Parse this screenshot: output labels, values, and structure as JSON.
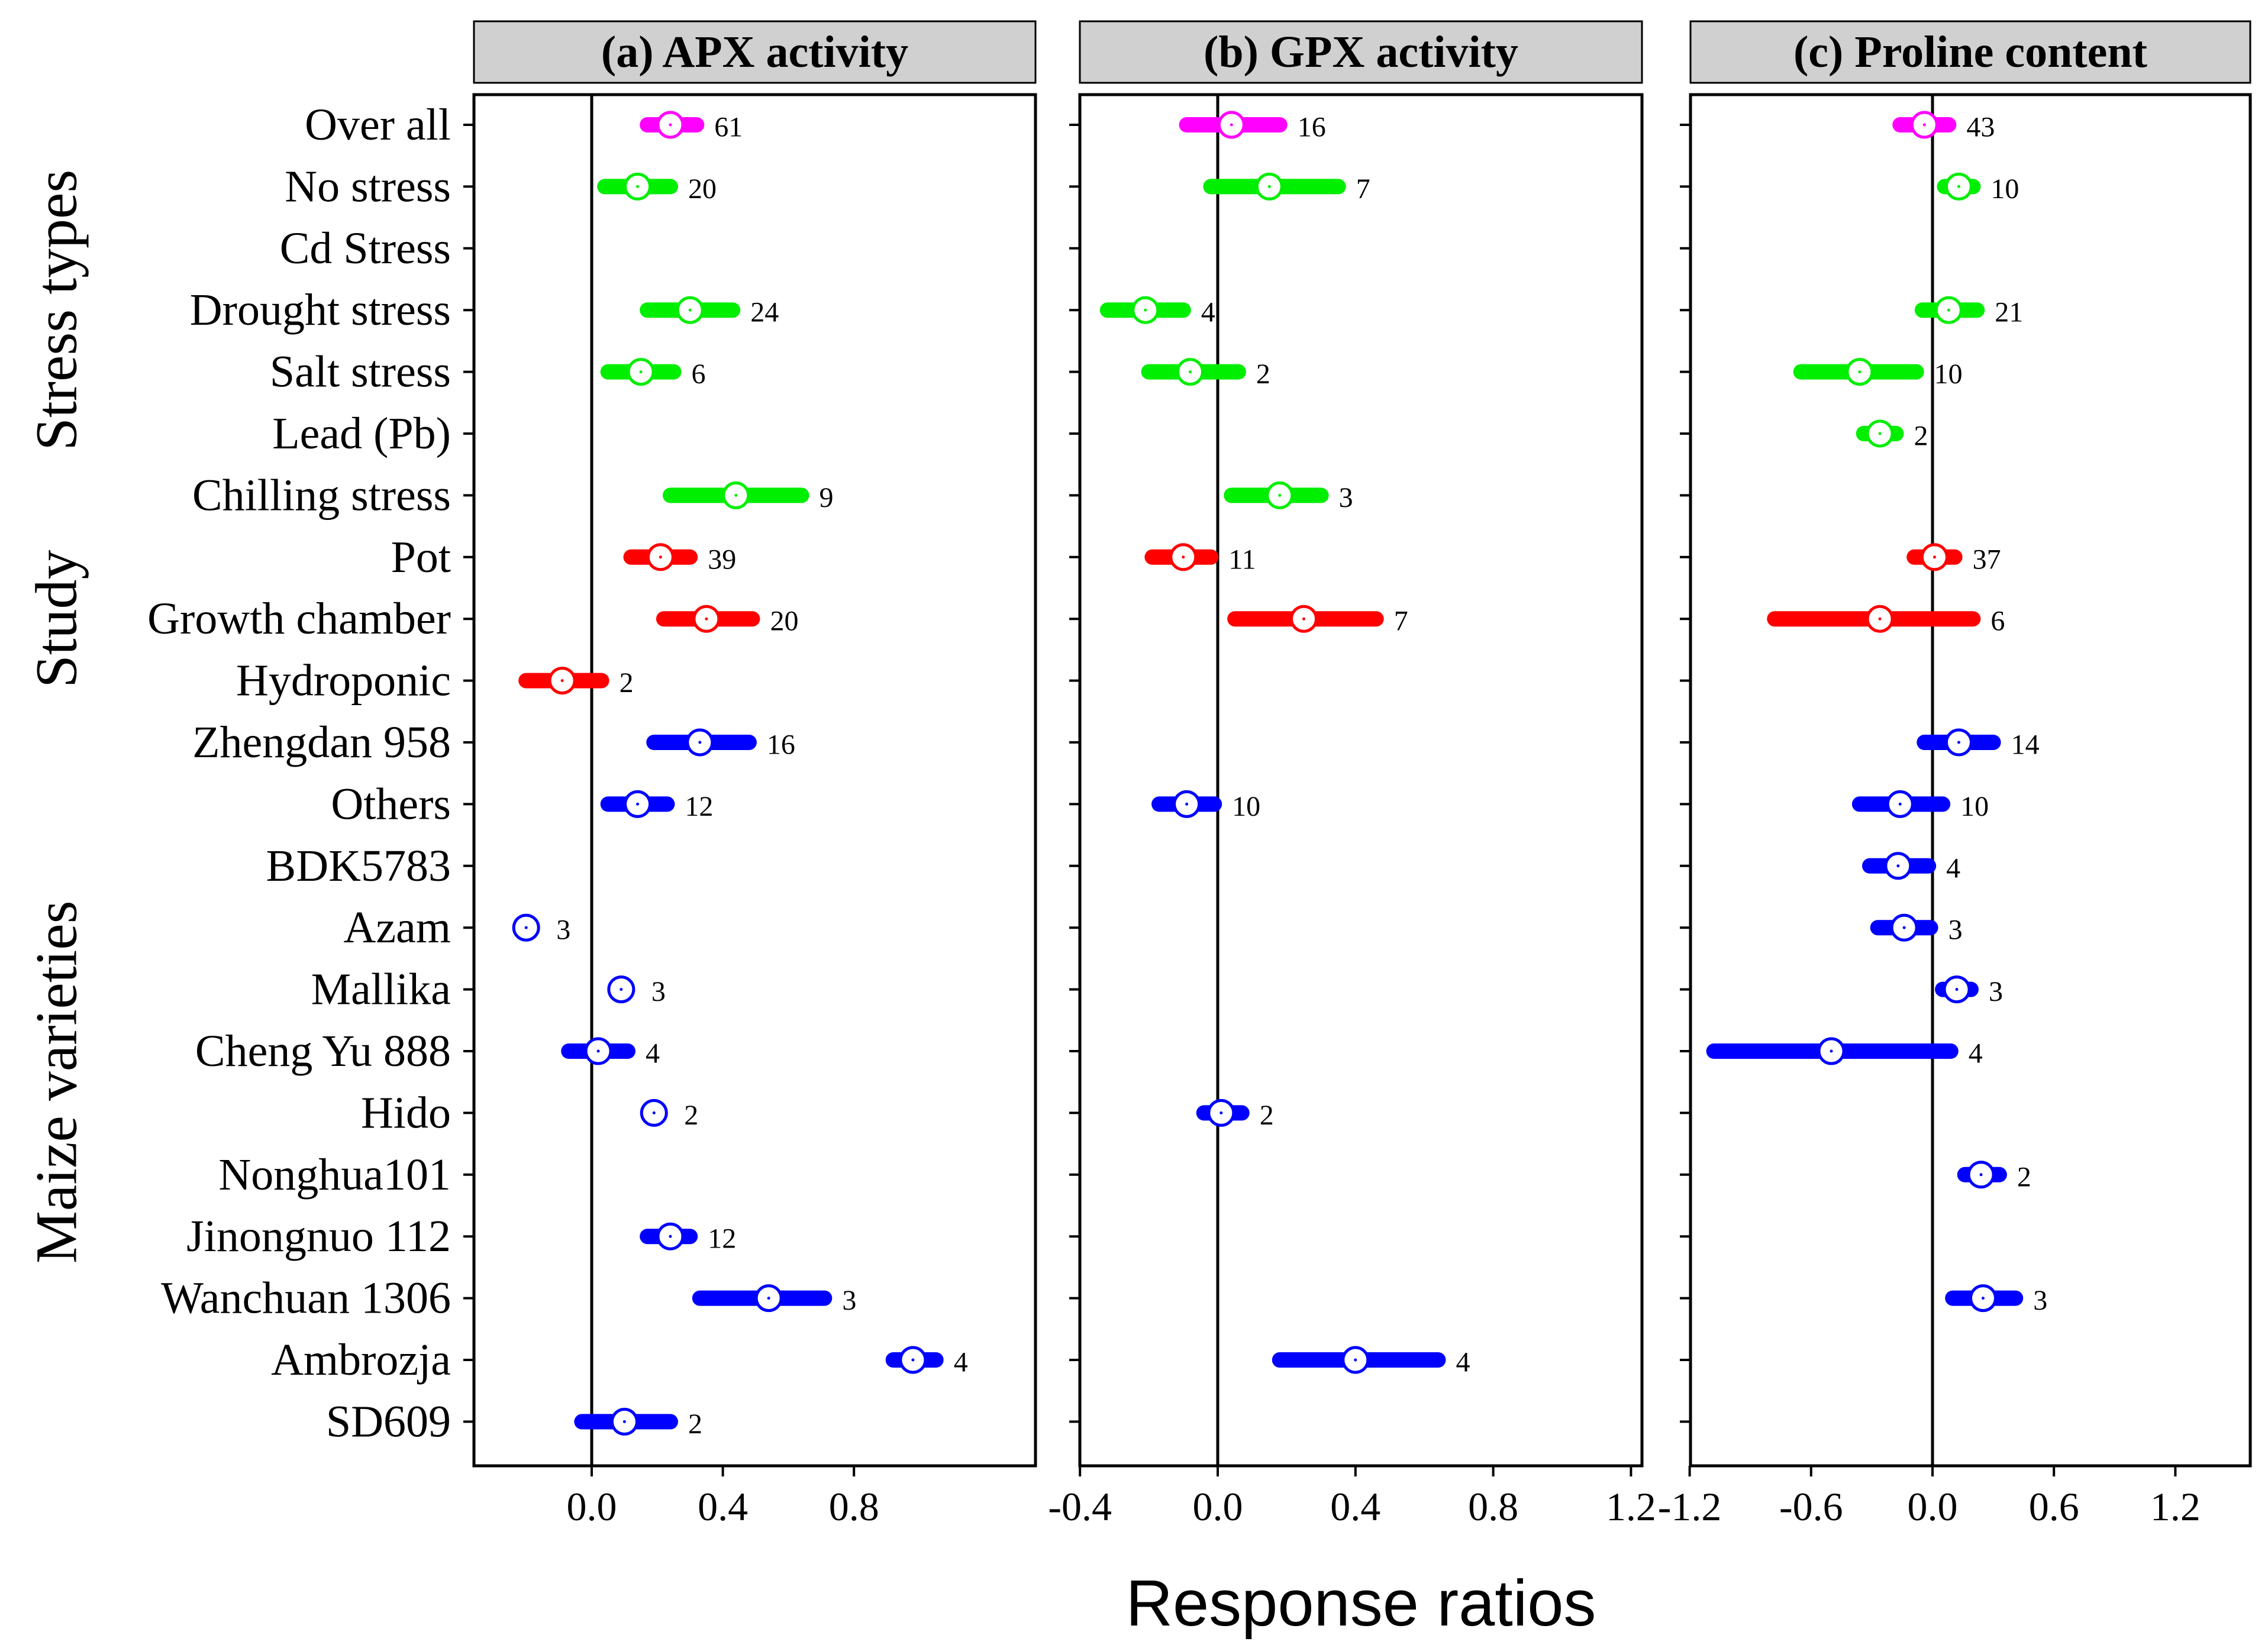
{
  "chart_data": {
    "type": "forest",
    "xlabel": "Response ratios",
    "colors": {
      "overall": "#ff00ff",
      "stress": "#00ee00",
      "study": "#ff0000",
      "variety": "#0000ff"
    },
    "groups": [
      {
        "label": "Stress types",
        "rows": [
          0,
          6
        ]
      },
      {
        "label": "Study",
        "rows": [
          7,
          9
        ]
      },
      {
        "label": "Maize varieties",
        "rows": [
          10,
          21
        ]
      }
    ],
    "rows": [
      {
        "label": "Over all",
        "color": "overall"
      },
      {
        "label": "No stress",
        "color": "stress"
      },
      {
        "label": "Cd Stress",
        "color": "stress"
      },
      {
        "label": "Drought stress",
        "color": "stress"
      },
      {
        "label": "Salt stress",
        "color": "stress"
      },
      {
        "label": "Lead (Pb)",
        "color": "stress"
      },
      {
        "label": "Chilling stress",
        "color": "stress"
      },
      {
        "label": "Pot",
        "color": "study"
      },
      {
        "label": "Growth chamber",
        "color": "study"
      },
      {
        "label": "Hydroponic",
        "color": "study"
      },
      {
        "label": "Zhengdan 958",
        "color": "variety"
      },
      {
        "label": "Others",
        "color": "variety"
      },
      {
        "label": "BDK5783",
        "color": "variety"
      },
      {
        "label": "Azam",
        "color": "variety"
      },
      {
        "label": "Mallika",
        "color": "variety"
      },
      {
        "label": "Cheng Yu 888",
        "color": "variety"
      },
      {
        "label": "Hido",
        "color": "variety"
      },
      {
        "label": "Nonghua101",
        "color": "variety"
      },
      {
        "label": "Jinongnuo 112",
        "color": "variety"
      },
      {
        "label": "Wanchuan 1306",
        "color": "variety"
      },
      {
        "label": "Ambrozja",
        "color": "variety"
      },
      {
        "label": "SD609",
        "color": "variety"
      }
    ],
    "panels": [
      {
        "title": "(a) APX activity",
        "xlim": [
          -0.3,
          1.1
        ],
        "ticks": [
          0.0,
          0.4,
          0.8
        ],
        "tick_labels": [
          "0.0",
          "0.4",
          "0.8"
        ],
        "points": [
          {
            "row": 0,
            "mean": 0.24,
            "lo": 0.17,
            "hi": 0.32,
            "n": "61"
          },
          {
            "row": 1,
            "mean": 0.14,
            "lo": 0.04,
            "hi": 0.24,
            "n": "20"
          },
          {
            "row": 3,
            "mean": 0.3,
            "lo": 0.17,
            "hi": 0.43,
            "n": "24"
          },
          {
            "row": 4,
            "mean": 0.15,
            "lo": 0.05,
            "hi": 0.25,
            "n": "6"
          },
          {
            "row": 6,
            "mean": 0.44,
            "lo": 0.24,
            "hi": 0.64,
            "n": "9"
          },
          {
            "row": 7,
            "mean": 0.21,
            "lo": 0.12,
            "hi": 0.3,
            "n": "39"
          },
          {
            "row": 8,
            "mean": 0.35,
            "lo": 0.22,
            "hi": 0.49,
            "n": "20"
          },
          {
            "row": 9,
            "mean": -0.09,
            "lo": -0.2,
            "hi": 0.03,
            "n": "2"
          },
          {
            "row": 10,
            "mean": 0.33,
            "lo": 0.19,
            "hi": 0.48,
            "n": "16"
          },
          {
            "row": 11,
            "mean": 0.14,
            "lo": 0.05,
            "hi": 0.23,
            "n": "12"
          },
          {
            "row": 13,
            "mean": -0.2,
            "lo": -0.2,
            "hi": -0.2,
            "n": "3"
          },
          {
            "row": 14,
            "mean": 0.09,
            "lo": 0.09,
            "hi": 0.09,
            "n": "3"
          },
          {
            "row": 15,
            "mean": 0.02,
            "lo": -0.07,
            "hi": 0.11,
            "n": "4"
          },
          {
            "row": 16,
            "mean": 0.19,
            "lo": 0.19,
            "hi": 0.19,
            "n": "2"
          },
          {
            "row": 18,
            "mean": 0.24,
            "lo": 0.17,
            "hi": 0.3,
            "n": "12"
          },
          {
            "row": 19,
            "mean": 0.54,
            "lo": 0.33,
            "hi": 0.71,
            "n": "3"
          },
          {
            "row": 20,
            "mean": 0.98,
            "lo": 0.92,
            "hi": 1.05,
            "n": "4"
          },
          {
            "row": 21,
            "mean": 0.1,
            "lo": -0.03,
            "hi": 0.24,
            "n": "2"
          }
        ]
      },
      {
        "title": "(b) GPX activity",
        "xlim": [
          -0.4,
          1.2
        ],
        "ticks": [
          -0.4,
          0.0,
          0.4,
          0.8,
          1.2
        ],
        "tick_labels": [
          "-0.4",
          "0.0",
          "0.4",
          "0.8",
          "1.2"
        ],
        "points": [
          {
            "row": 0,
            "mean": 0.04,
            "lo": -0.09,
            "hi": 0.18,
            "n": "16"
          },
          {
            "row": 1,
            "mean": 0.15,
            "lo": -0.02,
            "hi": 0.35,
            "n": "7"
          },
          {
            "row": 3,
            "mean": -0.21,
            "lo": -0.32,
            "hi": -0.1,
            "n": "4"
          },
          {
            "row": 4,
            "mean": -0.08,
            "lo": -0.2,
            "hi": 0.06,
            "n": "2"
          },
          {
            "row": 6,
            "mean": 0.18,
            "lo": 0.04,
            "hi": 0.3,
            "n": "3"
          },
          {
            "row": 7,
            "mean": -0.1,
            "lo": -0.19,
            "hi": -0.02,
            "n": "11"
          },
          {
            "row": 8,
            "mean": 0.25,
            "lo": 0.05,
            "hi": 0.46,
            "n": "7"
          },
          {
            "row": 11,
            "mean": -0.09,
            "lo": -0.17,
            "hi": -0.01,
            "n": "10"
          },
          {
            "row": 16,
            "mean": 0.01,
            "lo": -0.04,
            "hi": 0.07,
            "n": "2"
          },
          {
            "row": 20,
            "mean": 0.4,
            "lo": 0.18,
            "hi": 0.64,
            "n": "4"
          }
        ]
      },
      {
        "title": "(c) Proline content",
        "xlim": [
          -1.2,
          1.6
        ],
        "ticks": [
          -1.2,
          -0.6,
          0.0,
          0.6,
          1.2
        ],
        "tick_labels": [
          "-1.2",
          "-0.6",
          "0.0",
          "0.6",
          "1.2"
        ],
        "points": [
          {
            "row": 0,
            "mean": -0.04,
            "lo": -0.16,
            "hi": 0.08,
            "n": "43"
          },
          {
            "row": 1,
            "mean": 0.13,
            "lo": 0.06,
            "hi": 0.2,
            "n": "10"
          },
          {
            "row": 3,
            "mean": 0.08,
            "lo": -0.05,
            "hi": 0.22,
            "n": "21"
          },
          {
            "row": 4,
            "mean": -0.36,
            "lo": -0.65,
            "hi": -0.08,
            "n": "10"
          },
          {
            "row": 5,
            "mean": -0.26,
            "lo": -0.34,
            "hi": -0.18,
            "n": "2"
          },
          {
            "row": 7,
            "mean": 0.01,
            "lo": -0.09,
            "hi": 0.11,
            "n": "37"
          },
          {
            "row": 8,
            "mean": -0.26,
            "lo": -0.78,
            "hi": 0.2,
            "n": "6"
          },
          {
            "row": 10,
            "mean": 0.13,
            "lo": -0.04,
            "hi": 0.3,
            "n": "14"
          },
          {
            "row": 11,
            "mean": -0.16,
            "lo": -0.36,
            "hi": 0.05,
            "n": "10"
          },
          {
            "row": 12,
            "mean": -0.17,
            "lo": -0.31,
            "hi": -0.02,
            "n": "4"
          },
          {
            "row": 13,
            "mean": -0.14,
            "lo": -0.27,
            "hi": -0.01,
            "n": "3"
          },
          {
            "row": 14,
            "mean": 0.12,
            "lo": 0.05,
            "hi": 0.19,
            "n": "3"
          },
          {
            "row": 15,
            "mean": -0.5,
            "lo": -1.08,
            "hi": 0.09,
            "n": "4"
          },
          {
            "row": 17,
            "mean": 0.24,
            "lo": 0.16,
            "hi": 0.33,
            "n": "2"
          },
          {
            "row": 19,
            "mean": 0.25,
            "lo": 0.1,
            "hi": 0.41,
            "n": "3"
          }
        ]
      }
    ]
  }
}
